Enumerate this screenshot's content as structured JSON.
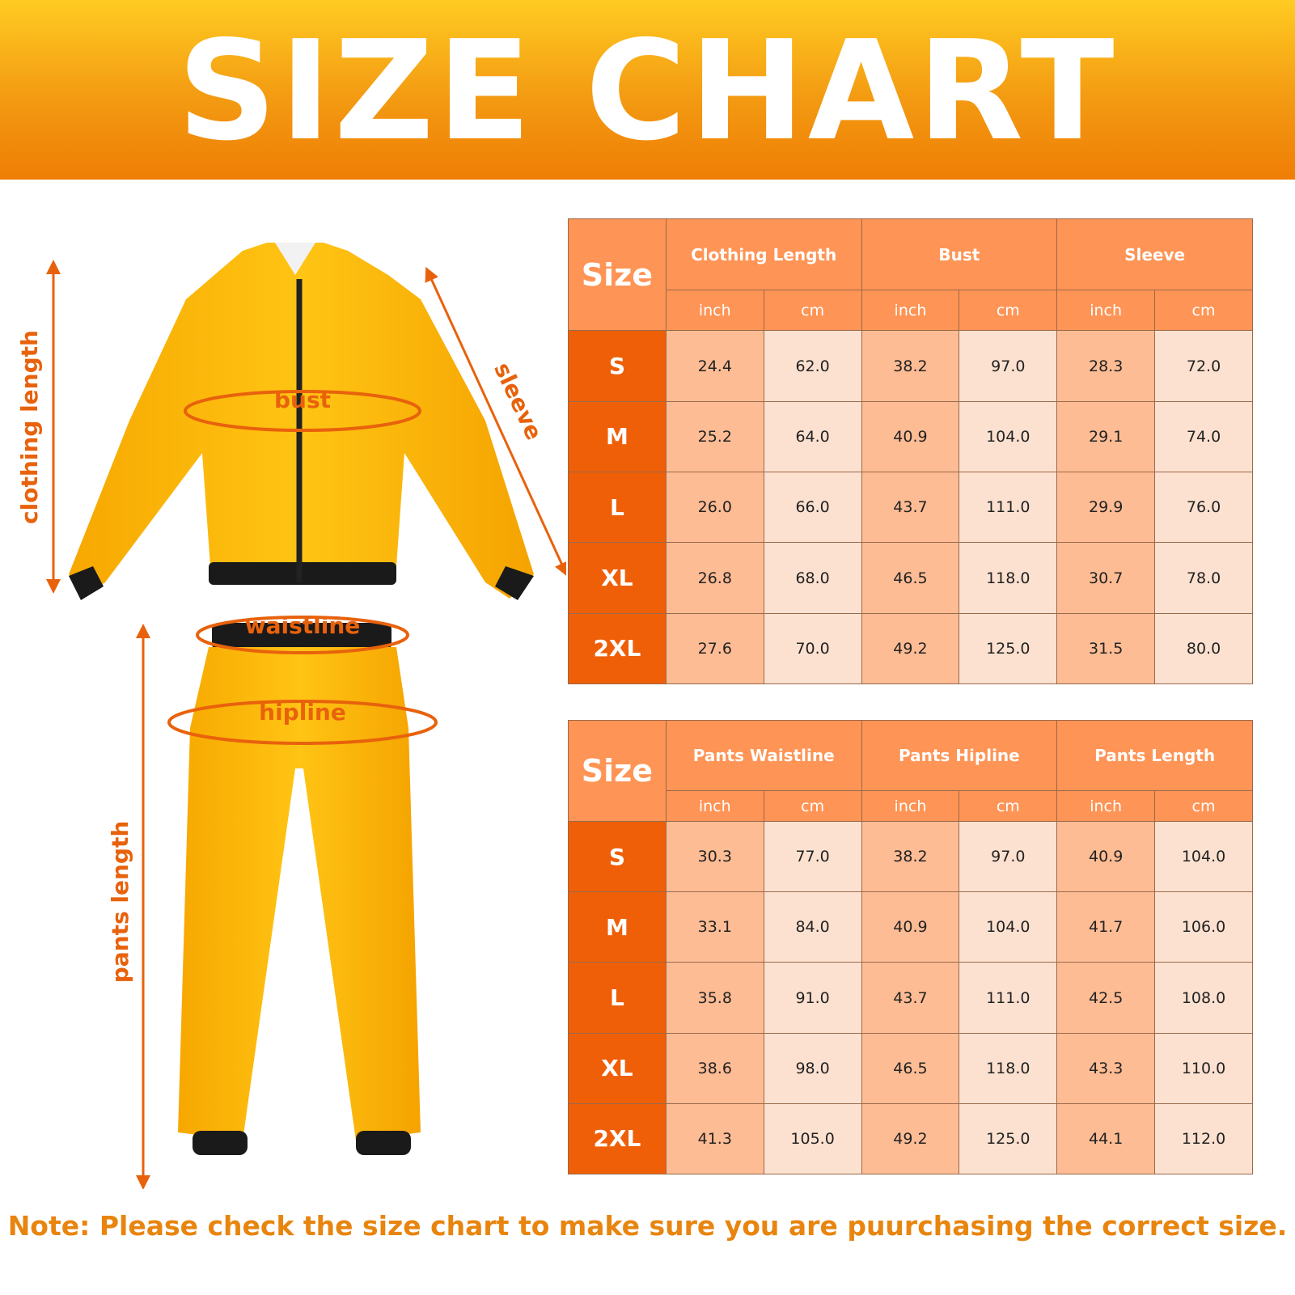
{
  "header": {
    "title": "SIZE CHART"
  },
  "colors": {
    "banner_top": "#ffcb22",
    "banner_bottom": "#ef7e05",
    "header_cell": "#fe9455",
    "size_cell": "#ef5f08",
    "inch_cell": "#fdbc94",
    "cm_cell": "#fde1d0",
    "accent": "#e8620c",
    "garment": "#ffb400"
  },
  "illustration": {
    "labels": {
      "clothing_length": "clothing length",
      "sleeve": "sleeve",
      "bust": "bust",
      "waistline": "waistline",
      "hipline": "hipline",
      "pants_length": "pants length"
    }
  },
  "tables": [
    {
      "size_header": "Size",
      "groups": [
        "Clothing Length",
        "Bust",
        "Sleeve"
      ],
      "units": [
        "inch",
        "cm",
        "inch",
        "cm",
        "inch",
        "cm"
      ],
      "rows": [
        {
          "size": "S",
          "values": [
            "24.4",
            "62.0",
            "38.2",
            "97.0",
            "28.3",
            "72.0"
          ]
        },
        {
          "size": "M",
          "values": [
            "25.2",
            "64.0",
            "40.9",
            "104.0",
            "29.1",
            "74.0"
          ]
        },
        {
          "size": "L",
          "values": [
            "26.0",
            "66.0",
            "43.7",
            "111.0",
            "29.9",
            "76.0"
          ]
        },
        {
          "size": "XL",
          "values": [
            "26.8",
            "68.0",
            "46.5",
            "118.0",
            "30.7",
            "78.0"
          ]
        },
        {
          "size": "2XL",
          "values": [
            "27.6",
            "70.0",
            "49.2",
            "125.0",
            "31.5",
            "80.0"
          ]
        }
      ]
    },
    {
      "size_header": "Size",
      "groups": [
        "Pants Waistline",
        "Pants Hipline",
        "Pants Length"
      ],
      "units": [
        "inch",
        "cm",
        "inch",
        "cm",
        "inch",
        "cm"
      ],
      "rows": [
        {
          "size": "S",
          "values": [
            "30.3",
            "77.0",
            "38.2",
            "97.0",
            "40.9",
            "104.0"
          ]
        },
        {
          "size": "M",
          "values": [
            "33.1",
            "84.0",
            "40.9",
            "104.0",
            "41.7",
            "106.0"
          ]
        },
        {
          "size": "L",
          "values": [
            "35.8",
            "91.0",
            "43.7",
            "111.0",
            "42.5",
            "108.0"
          ]
        },
        {
          "size": "XL",
          "values": [
            "38.6",
            "98.0",
            "46.5",
            "118.0",
            "43.3",
            "110.0"
          ]
        },
        {
          "size": "2XL",
          "values": [
            "41.3",
            "105.0",
            "49.2",
            "125.0",
            "44.1",
            "112.0"
          ]
        }
      ]
    }
  ],
  "note": "Note: Please check the size chart to make sure you are puurchasing the correct size."
}
